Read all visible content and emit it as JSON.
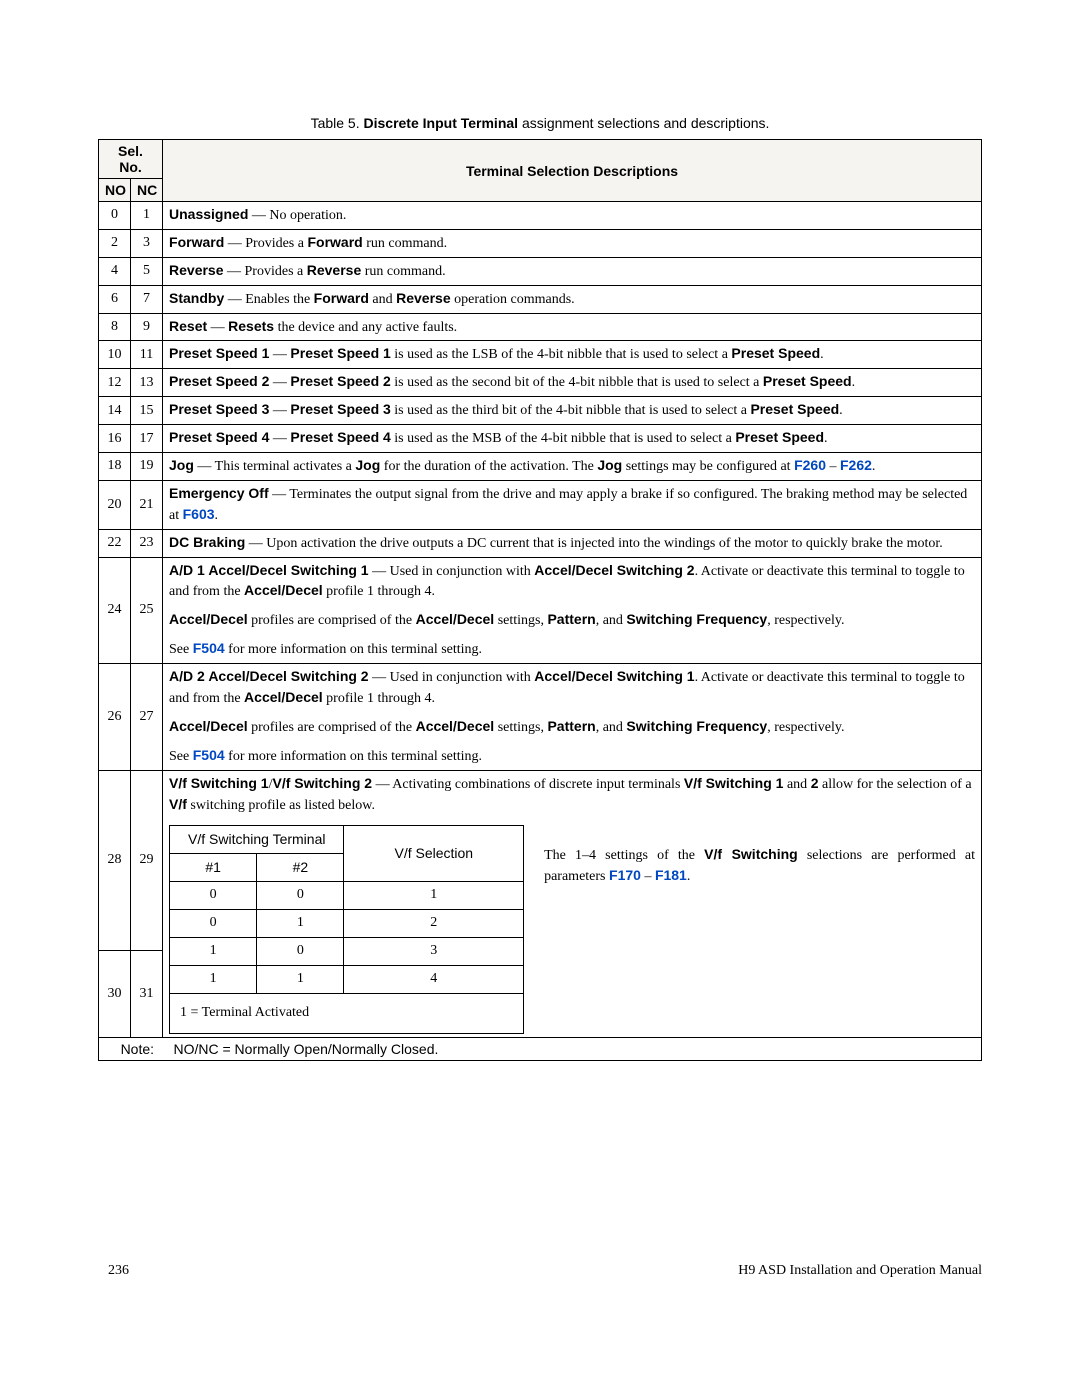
{
  "caption": {
    "lead": "Table 5. ",
    "bold": "Discrete Input Terminal",
    "rest": " assignment selections and descriptions."
  },
  "headers": {
    "selno": "Sel. No.",
    "no": "NO",
    "nc": "NC",
    "title": "Terminal Selection Descriptions"
  },
  "rows": [
    {
      "no": "0",
      "nc": "1",
      "b": "Unassigned",
      "t": " — No operation."
    },
    {
      "no": "2",
      "nc": "3",
      "b": "Forward",
      "t": " — Provides a ",
      "b2": "Forward",
      "t2": " run command."
    },
    {
      "no": "4",
      "nc": "5",
      "b": "Reverse",
      "t": " — Provides a ",
      "b2": "Reverse",
      "t2": " run command."
    },
    {
      "no": "6",
      "nc": "7",
      "b": "Standby",
      "t": " — Enables the ",
      "b2": "Forward",
      "t2": " and ",
      "b3": "Reverse",
      "t3": " operation commands."
    },
    {
      "no": "8",
      "nc": "9",
      "b": "Reset",
      "t": " — ",
      "b2": "Resets",
      "t2": " the device and any active faults."
    },
    {
      "no": "10",
      "nc": "11",
      "b": "Preset Speed 1",
      "t": " — ",
      "b2": "Preset Speed 1",
      "t2": " is used as the LSB of the 4-bit nibble that is used to select a ",
      "b3": "Preset Speed",
      "t3": "."
    },
    {
      "no": "12",
      "nc": "13",
      "b": "Preset Speed 2",
      "t": " — ",
      "b2": "Preset Speed 2",
      "t2": " is used as the second bit of the 4-bit nibble that is used to select a ",
      "b3": "Preset Speed",
      "t3": "."
    },
    {
      "no": "14",
      "nc": "15",
      "b": "Preset Speed 3",
      "t": " — ",
      "b2": "Preset Speed 3",
      "t2": " is used as the third bit of the 4-bit nibble that is used to select a ",
      "b3": "Preset Speed",
      "t3": "."
    },
    {
      "no": "16",
      "nc": "17",
      "b": "Preset Speed 4",
      "t": " — ",
      "b2": "Preset Speed 4",
      "t2": " is used as the MSB of the 4-bit nibble that is used to select a ",
      "b3": "Preset Speed",
      "t3": "."
    }
  ],
  "jog": {
    "no": "18",
    "nc": "19",
    "p1a": "Jog",
    "p1b": " — This terminal activates a ",
    "p1c": "Jog",
    "p1d": " for the duration of the activation. The ",
    "p1e": "Jog",
    "p1f": " settings may be configured at ",
    "link1": "F260",
    "dash": " – ",
    "link2": "F262",
    "end": "."
  },
  "emerg": {
    "no": "20",
    "nc": "21",
    "b": "Emergency Off",
    "t": " — Terminates the output signal from the drive and may apply a brake if so configured. The braking method may be selected at ",
    "link": "F603",
    "end": "."
  },
  "dcbrk": {
    "no": "22",
    "nc": "23",
    "b": "DC Braking",
    "t": " — Upon activation the drive outputs a DC current that is injected into the windings of the motor to quickly brake the motor."
  },
  "ad1": {
    "no": "24",
    "nc": "25",
    "b": "A/D 1",
    "t1": "  ",
    "b2": "Accel/Decel Switching 1",
    "t2": " — Used in conjunction with ",
    "b3": "Accel/Decel Switching 2",
    "t3": ". Activate or deactivate this terminal to toggle to and from the ",
    "b4": "Accel/Decel",
    "t4": " profile 1 through 4.",
    "p2a": "Accel/Decel",
    "p2b": " profiles are comprised of the ",
    "p2c": "Accel/Decel",
    "p2d": " settings, ",
    "p2e": "Pattern",
    "p2f": ", and ",
    "p2g": "Switching Frequency",
    "p2h": ", respectively.",
    "p3a": "See ",
    "p3link": "F504",
    "p3b": " for more information on this terminal setting."
  },
  "ad2": {
    "no": "26",
    "nc": "27",
    "b": "A/D 2",
    "t1": "  ",
    "b2": "Accel/Decel Switching 2",
    "t2": " — Used in conjunction with ",
    "b3": "Accel/Decel Switching 1",
    "t3": ". Activate or deactivate this terminal to toggle to and from the ",
    "b4": "Accel/Decel",
    "t4": " profile 1 through 4.",
    "p2a": "Accel/Decel",
    "p2b": " profiles are comprised of the ",
    "p2c": "Accel/Decel",
    "p2d": " settings, ",
    "p2e": "Pattern",
    "p2f": ", and ",
    "p2g": "Switching Frequency",
    "p2h": ", respectively.",
    "p3a": "See ",
    "p3link": "F504",
    "p3b": " for more information on this terminal setting."
  },
  "vf1": {
    "no": "28",
    "nc": "29",
    "b": "V/f Switching 1",
    "b2": "V/f Switching 2",
    "t": " — Activating combinations of discrete input terminals ",
    "b3": "V/f Switching 1",
    "t2": " and ",
    "b4": "2",
    "t3": " allow for the selection of a ",
    "b5": "V/f",
    "t4": " switching profile as listed below."
  },
  "vf2": {
    "no": "30",
    "nc": "31"
  },
  "inner": {
    "h1": "V/f Switching Terminal",
    "h2": "V/f Selection",
    "c1": "#1",
    "c2": "#2",
    "rows": [
      [
        "0",
        "0",
        "1"
      ],
      [
        "0",
        "1",
        "2"
      ],
      [
        "1",
        "0",
        "3"
      ],
      [
        "1",
        "1",
        "4"
      ]
    ],
    "foot": "1 = Terminal Activated"
  },
  "sidenote": {
    "t1": "The 1–4 settings of the ",
    "b1": "V/f Switching",
    "t2": " selections are performed at parameters ",
    "link1": "F170",
    "dash": " – ",
    "link2": "F181",
    "end": "."
  },
  "note": {
    "label": "Note:",
    "text": "NO/NC = Normally Open/Normally Closed."
  },
  "footer": {
    "page": "236",
    "manual": "H9 ASD Installation and Operation Manual"
  },
  "colors": {
    "link": "#0047c2",
    "headerbg": "#f5f4f0"
  }
}
